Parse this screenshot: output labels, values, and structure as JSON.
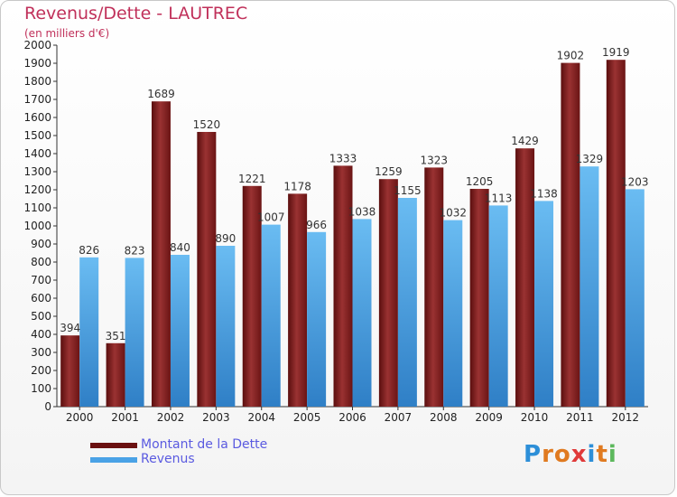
{
  "title": "Revenus/Dette - LAUTREC",
  "subtitle": "(en milliers d'€)",
  "logo_text": "Proxiti",
  "colors": {
    "dette": "#7a1c1c",
    "dette_light": "#a03535",
    "revenus": "#4a9ee0",
    "revenus_light": "#6ab8f0",
    "title": "#c0305a",
    "legend_text": "#5a5ae0"
  },
  "legend": [
    {
      "label": "Montant de la Dette",
      "color": "#6a1010"
    },
    {
      "label": "Revenus",
      "color": "#4aa2e6"
    }
  ],
  "chart_data": {
    "type": "bar",
    "categories": [
      "2000",
      "2001",
      "2002",
      "2003",
      "2004",
      "2005",
      "2006",
      "2007",
      "2008",
      "2009",
      "2010",
      "2011",
      "2012"
    ],
    "series": [
      {
        "name": "Montant de la Dette",
        "values": [
          394,
          351,
          1689,
          1520,
          1221,
          1178,
          1333,
          1259,
          1323,
          1205,
          1429,
          1902,
          1919
        ]
      },
      {
        "name": "Revenus",
        "values": [
          826,
          823,
          840,
          890,
          1007,
          966,
          1038,
          1155,
          1032,
          1113,
          1138,
          1329,
          1203
        ]
      }
    ],
    "ylim": [
      0,
      2000
    ],
    "ytick_step": 100,
    "grid": false,
    "legend_position": "bottom-left"
  }
}
